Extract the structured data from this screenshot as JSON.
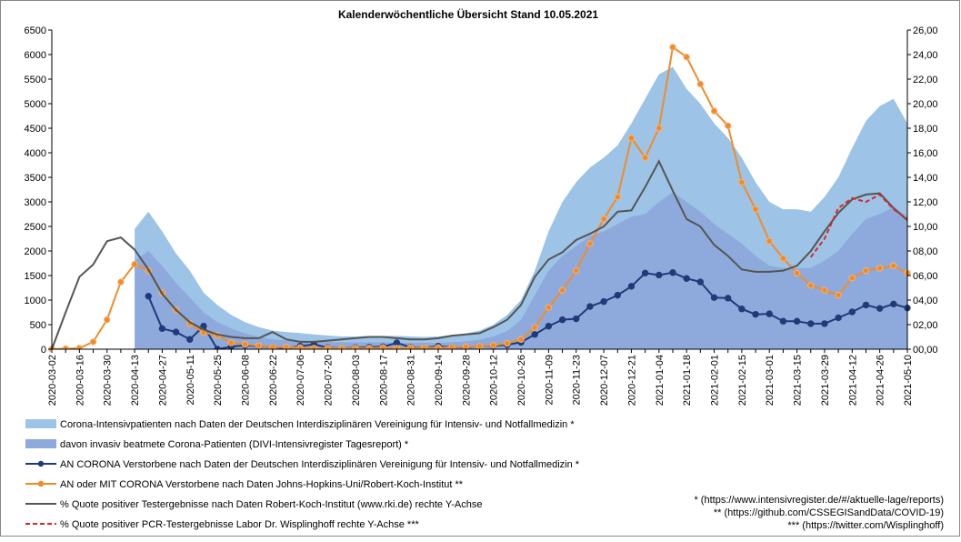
{
  "chart_data": {
    "type": "line",
    "title": "Kalenderwöchentliche Übersicht Stand 10.05.2021",
    "categories": [
      "2020-03-02",
      null,
      "2020-03-16",
      null,
      "2020-03-30",
      null,
      "2020-04-13",
      null,
      "2020-04-27",
      null,
      "2020-05-11",
      null,
      "2020-05-25",
      null,
      "2020-06-08",
      null,
      "2020-06-22",
      null,
      "2020-07-06",
      null,
      "2020-07-20",
      null,
      "2020-08-03",
      null,
      "2020-08-17",
      null,
      "2020-08-31",
      null,
      "2020-09-14",
      null,
      "2020-09-28",
      null,
      "2020-10-12",
      null,
      "2020-10-26",
      null,
      "2020-11-09",
      null,
      "2020-11-23",
      null,
      "2020-12-07",
      null,
      "2020-12-21",
      null,
      "2021-01-04",
      null,
      "2021-01-18",
      null,
      "2021-02-01",
      null,
      "2021-02-15",
      null,
      "2021-03-01",
      null,
      "2021-03-15",
      null,
      "2021-03-29",
      null,
      "2021-04-12",
      null,
      "2021-04-26",
      null,
      "2021-05-10"
    ],
    "ylim": [
      0,
      6500
    ],
    "yticks": [
      0,
      500,
      1000,
      1500,
      2000,
      2500,
      3000,
      3500,
      4000,
      4500,
      5000,
      5500,
      6000,
      6500
    ],
    "y2lim": [
      0,
      26
    ],
    "y2ticks": [
      {
        "value": 0,
        "label": "00,00"
      },
      {
        "value": 2,
        "label": "02,00"
      },
      {
        "value": 4,
        "label": "04,00"
      },
      {
        "value": 6,
        "label": "06,00"
      },
      {
        "value": 8,
        "label": "08,00"
      },
      {
        "value": 10,
        "label": "10,00"
      },
      {
        "value": 12,
        "label": "12,00"
      },
      {
        "value": 14,
        "label": "14,00"
      },
      {
        "value": 16,
        "label": "16,00"
      },
      {
        "value": 18,
        "label": "18,00"
      },
      {
        "value": 20,
        "label": "20,00"
      },
      {
        "value": 22,
        "label": "22,00"
      },
      {
        "value": 24,
        "label": "24,00"
      },
      {
        "value": 26,
        "label": "26,00"
      }
    ],
    "grid": false,
    "series": [
      {
        "name": "Corona-Intensivpatienten nach Daten der Deutschen Interdisziplinären Vereinigung für Intensiv- und Notfallmedizin *",
        "kind": "area",
        "color": "#9dc3e6",
        "values": [
          null,
          null,
          null,
          null,
          null,
          null,
          2450,
          2800,
          2400,
          1950,
          1600,
          1150,
          900,
          700,
          550,
          450,
          380,
          350,
          330,
          300,
          280,
          260,
          260,
          270,
          270,
          270,
          260,
          250,
          260,
          290,
          320,
          380,
          500,
          700,
          1000,
          1600,
          2400,
          3000,
          3400,
          3700,
          3900,
          4150,
          4600,
          5100,
          5600,
          5750,
          5300,
          5000,
          4600,
          4300,
          3900,
          3400,
          3000,
          2850,
          2850,
          2800,
          3100,
          3500,
          4100,
          4650,
          4950,
          5100,
          4600
        ]
      },
      {
        "name": "davon invasiv beatmete Corona-Patienten (DIVI-Intensivregister Tagesreport)  *",
        "kind": "area",
        "color": "#8eaadc",
        "values": [
          null,
          null,
          null,
          null,
          null,
          null,
          1800,
          2000,
          1700,
          1350,
          1050,
          750,
          550,
          420,
          320,
          250,
          200,
          180,
          170,
          160,
          150,
          140,
          140,
          140,
          140,
          140,
          130,
          130,
          130,
          140,
          160,
          190,
          260,
          370,
          600,
          1100,
          1600,
          1900,
          2100,
          2300,
          2400,
          2550,
          2700,
          2750,
          3000,
          3200,
          3000,
          2800,
          2550,
          2350,
          2150,
          1900,
          1700,
          1650,
          1650,
          1650,
          1800,
          2000,
          2350,
          2650,
          2750,
          2900,
          2700
        ]
      },
      {
        "name": "AN CORONA Verstorbene nach Daten der Deutschen Interdisziplinären Vereinigung für Intensiv- und Notfallmedizin *",
        "kind": "line",
        "marker": true,
        "color": "#1f3b7a",
        "values": [
          null,
          null,
          null,
          null,
          null,
          null,
          null,
          1080,
          420,
          350,
          200,
          470,
          0,
          50,
          80,
          60,
          40,
          20,
          60,
          100,
          30,
          20,
          30,
          40,
          50,
          130,
          40,
          30,
          60,
          40,
          40,
          60,
          70,
          90,
          140,
          300,
          470,
          600,
          620,
          870,
          970,
          1100,
          1280,
          1550,
          1510,
          1560,
          1440,
          1370,
          1050,
          1040,
          820,
          710,
          720,
          570,
          570,
          520,
          520,
          640,
          760,
          900,
          830,
          920,
          840
        ]
      },
      {
        "name": "AN oder MIT CORONA Verstorbene nach Daten Johns-Hopkins-Uni/Robert-Koch-Institut **",
        "kind": "line",
        "marker": true,
        "color": "#f08c28",
        "values": [
          0,
          10,
          20,
          150,
          600,
          1370,
          1730,
          1600,
          1150,
          800,
          520,
          340,
          280,
          130,
          100,
          70,
          40,
          40,
          30,
          20,
          20,
          20,
          20,
          20,
          30,
          20,
          30,
          30,
          30,
          40,
          50,
          60,
          80,
          120,
          200,
          440,
          850,
          1200,
          1600,
          2150,
          2650,
          3100,
          4300,
          3900,
          4500,
          6150,
          5950,
          5400,
          4850,
          4550,
          3400,
          2850,
          2200,
          1850,
          1550,
          1300,
          1200,
          1100,
          1450,
          1600,
          1650,
          1700,
          1550
        ]
      },
      {
        "name": "% Quote positiver Testergebnisse nach Daten Robert-Koch-Institut (www.rki.de) rechte Y-Achse",
        "kind": "line",
        "axis": "y2",
        "color": "#555555",
        "values": [
          0,
          3.0,
          5.9,
          6.9,
          8.8,
          9.1,
          8.1,
          6.5,
          4.5,
          3.2,
          2.2,
          1.6,
          1.2,
          1.0,
          0.9,
          0.9,
          1.4,
          0.8,
          0.6,
          0.6,
          0.7,
          0.8,
          0.9,
          1.0,
          1.0,
          0.9,
          0.8,
          0.8,
          0.9,
          1.1,
          1.2,
          1.3,
          1.8,
          2.4,
          3.6,
          5.9,
          7.3,
          7.9,
          8.9,
          9.4,
          10.0,
          11.2,
          11.3,
          13.2,
          15.3,
          12.9,
          10.6,
          10.0,
          8.5,
          7.6,
          6.5,
          6.3,
          6.3,
          6.4,
          6.8,
          8.0,
          9.6,
          11.1,
          12.2,
          12.6,
          12.7,
          11.5,
          10.5
        ]
      },
      {
        "name": "% Quote positiver PCR-Testergebnisse Labor Dr. Wisplinghoff rechte Y-Achse ***",
        "kind": "line",
        "axis": "y2",
        "dash": true,
        "color": "#d9262c",
        "values": [
          null,
          null,
          null,
          null,
          null,
          null,
          null,
          null,
          null,
          null,
          null,
          null,
          null,
          null,
          null,
          null,
          null,
          null,
          null,
          null,
          null,
          null,
          null,
          null,
          null,
          null,
          null,
          null,
          null,
          null,
          null,
          null,
          null,
          null,
          null,
          null,
          null,
          null,
          null,
          null,
          null,
          null,
          null,
          null,
          null,
          null,
          null,
          null,
          null,
          null,
          null,
          null,
          null,
          null,
          null,
          7.5,
          9.0,
          11.5,
          12.3,
          12.0,
          12.6,
          11.4,
          10.6
        ]
      }
    ],
    "notes": [
      "* (https://www.intensivregister.de/#/aktuelle-lage/reports)",
      "** (https://github.com/CSSEGISandData/COVID-19)",
      "*** (https://twitter.com/Wisplinghoff)"
    ]
  }
}
